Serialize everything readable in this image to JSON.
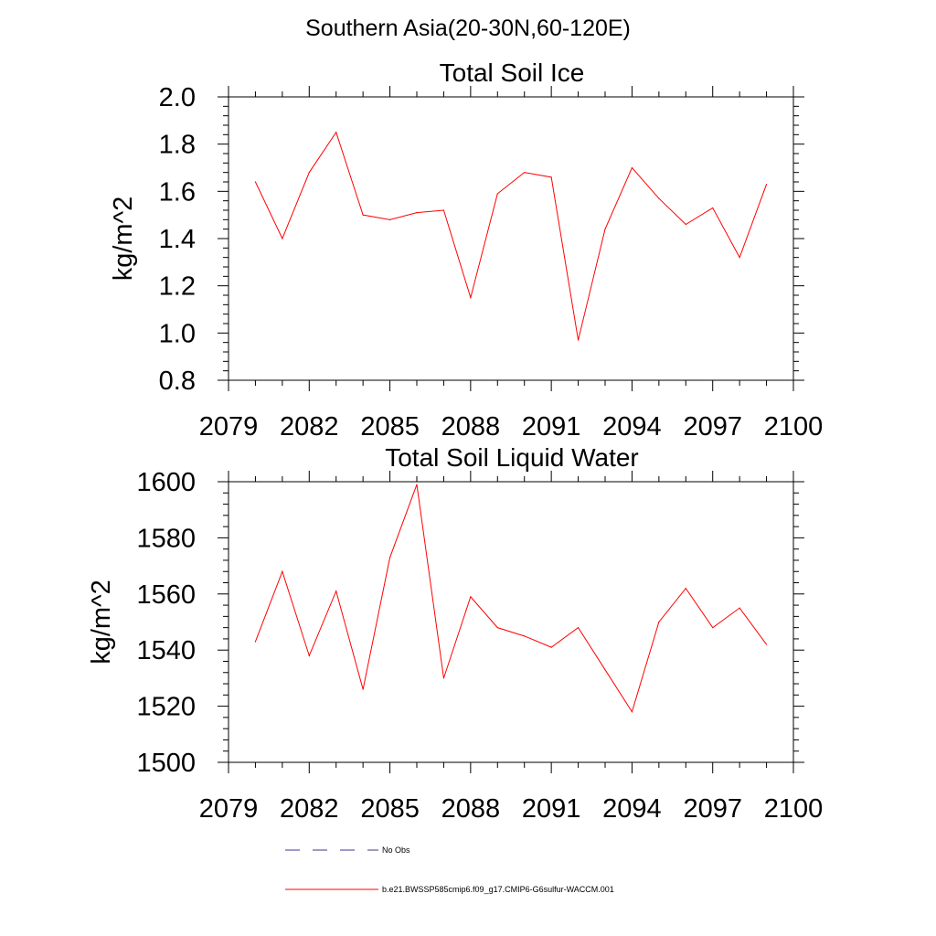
{
  "suptitle": "Southern Asia(20-30N,60-120E)",
  "colors": {
    "series": "#ff0000",
    "obs": "#3a3a8a",
    "axis": "#000000"
  },
  "legend": {
    "placement": "bottom-left",
    "obs_label": "No Obs",
    "model_label": "b.e21.BWSSP585cmip6.f09_g17.CMIP6-G6sulfur-WACCM.001"
  },
  "chart_data": [
    {
      "type": "line",
      "title": "Total Soil Ice",
      "ylabel": "kg/m^2",
      "xlabel": "",
      "xlim": [
        2079,
        2100
      ],
      "ylim": [
        0.8,
        2.0
      ],
      "xticks": [
        2079,
        2082,
        2085,
        2088,
        2091,
        2094,
        2097,
        2100
      ],
      "yticks": [
        "0.8",
        "1.0",
        "1.2",
        "1.4",
        "1.6",
        "1.8",
        "2.0"
      ],
      "grid": false,
      "series": [
        {
          "name": "b.e21.BWSSP585cmip6.f09_g17.CMIP6-G6sulfur-WACCM.001",
          "x": [
            2080,
            2081,
            2082,
            2083,
            2084,
            2085,
            2086,
            2087,
            2088,
            2089,
            2090,
            2091,
            2092,
            2093,
            2094,
            2095,
            2096,
            2097,
            2098,
            2099
          ],
          "values": [
            1.64,
            1.4,
            1.68,
            1.85,
            1.5,
            1.48,
            1.51,
            1.52,
            1.15,
            1.59,
            1.68,
            1.66,
            0.97,
            1.44,
            1.7,
            1.57,
            1.46,
            1.53,
            1.32,
            1.63
          ]
        }
      ]
    },
    {
      "type": "line",
      "title": "Total Soil Liquid Water",
      "ylabel": "kg/m^2",
      "xlabel": "",
      "xlim": [
        2079,
        2100
      ],
      "ylim": [
        1500,
        1600
      ],
      "xticks": [
        2079,
        2082,
        2085,
        2088,
        2091,
        2094,
        2097,
        2100
      ],
      "yticks": [
        "1500",
        "1520",
        "1540",
        "1560",
        "1580",
        "1600"
      ],
      "grid": false,
      "series": [
        {
          "name": "b.e21.BWSSP585cmip6.f09_g17.CMIP6-G6sulfur-WACCM.001",
          "x": [
            2080,
            2081,
            2082,
            2083,
            2084,
            2085,
            2086,
            2087,
            2088,
            2089,
            2090,
            2091,
            2092,
            2093,
            2094,
            2095,
            2096,
            2097,
            2098,
            2099
          ],
          "values": [
            1543,
            1568,
            1538,
            1561,
            1526,
            1573,
            1599,
            1530,
            1559,
            1548,
            1545,
            1541,
            1548,
            1533,
            1518,
            1550,
            1562,
            1548,
            1555,
            1542
          ]
        }
      ]
    }
  ]
}
